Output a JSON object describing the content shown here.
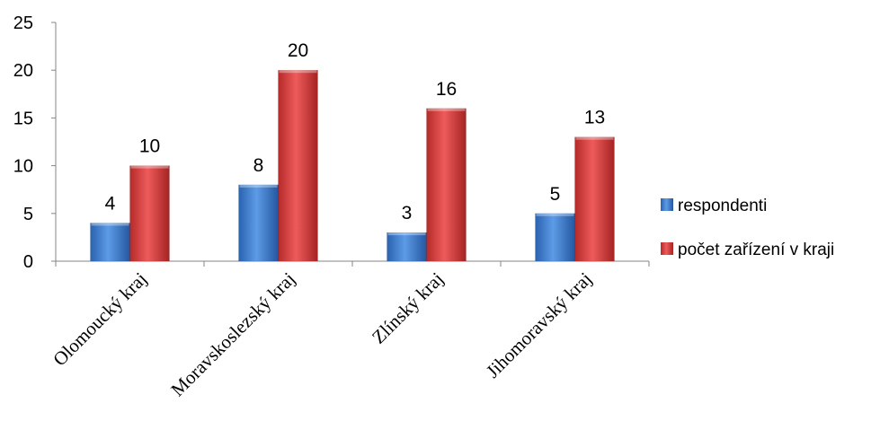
{
  "chart_data": {
    "type": "bar",
    "categories": [
      "Olomoucký kraj",
      "Moravskoslezský kraj",
      "Zlínský kraj",
      "Jihomoravský kraj"
    ],
    "series": [
      {
        "name": "respondenti",
        "values": [
          4,
          8,
          3,
          5
        ],
        "color": "#3f7fd0"
      },
      {
        "name": "počet zařízení v kraji",
        "values": [
          10,
          20,
          16,
          13
        ],
        "color": "#d53b3b"
      }
    ],
    "ylim": [
      0,
      25
    ],
    "yticks": [
      0,
      5,
      10,
      15,
      20,
      25
    ],
    "grid": false,
    "legend": "right",
    "data_labels": true
  }
}
